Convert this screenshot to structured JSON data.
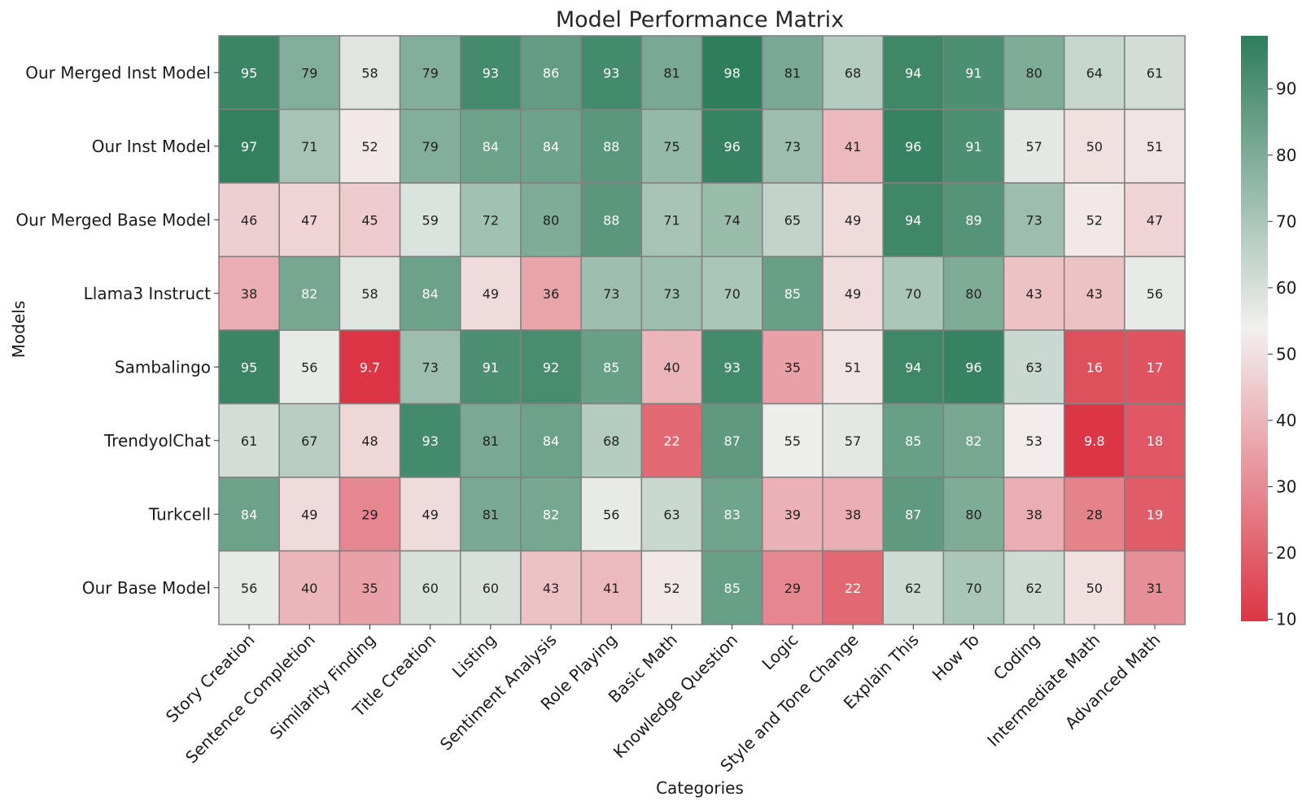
{
  "chart_data": {
    "type": "heatmap",
    "title": "Model Performance Matrix",
    "xlabel": "Categories",
    "ylabel": "Models",
    "rows": [
      "Our Merged Inst Model",
      "Our Inst Model",
      "Our Merged Base Model",
      "Llama3 Instruct",
      "Sambalingo",
      "TrendyolChat",
      "Turkcell",
      "Our Base Model"
    ],
    "columns": [
      "Story Creation",
      "Sentence Completion",
      "Similarity Finding",
      "Title Creation",
      "Listing",
      "Sentiment Analysis",
      "Role Playing",
      "Basic Math",
      "Knowledge Question",
      "Logic",
      "Style and Tone Change",
      "Explain This",
      "How To",
      "Coding",
      "Intermediate Math",
      "Advanced Math"
    ],
    "values": [
      [
        95,
        79,
        58,
        79,
        93,
        86,
        93,
        81,
        98,
        81,
        68,
        94,
        91,
        80,
        64,
        61
      ],
      [
        97,
        71,
        52,
        79,
        84,
        84,
        88,
        75,
        96,
        73,
        41,
        96,
        91,
        57,
        50,
        51
      ],
      [
        46,
        47,
        45,
        59,
        72,
        80,
        88,
        71,
        74,
        65,
        49,
        94,
        89,
        73,
        52,
        47
      ],
      [
        38,
        82,
        58,
        84,
        49,
        36,
        73,
        73,
        70,
        85,
        49,
        70,
        80,
        43,
        43,
        56
      ],
      [
        95,
        56,
        9.7,
        73,
        91,
        92,
        85,
        40,
        93,
        35,
        51,
        94,
        96,
        63,
        16,
        17
      ],
      [
        61,
        67,
        48,
        93,
        81,
        84,
        68,
        22,
        87,
        55,
        57,
        85,
        82,
        53,
        9.8,
        18
      ],
      [
        84,
        49,
        29,
        49,
        81,
        82,
        56,
        63,
        83,
        39,
        38,
        87,
        80,
        38,
        28,
        19
      ],
      [
        56,
        40,
        35,
        60,
        60,
        43,
        41,
        52,
        85,
        29,
        22,
        62,
        70,
        62,
        50,
        31
      ]
    ],
    "colorbar": {
      "min": 9.7,
      "max": 98,
      "ticks": [
        "10",
        "20",
        "30",
        "40",
        "50",
        "60",
        "70",
        "80",
        "90"
      ]
    },
    "colors": {
      "low": "#dc3545",
      "mid": "#f2f0ef",
      "high": "#2e7d5b"
    }
  }
}
